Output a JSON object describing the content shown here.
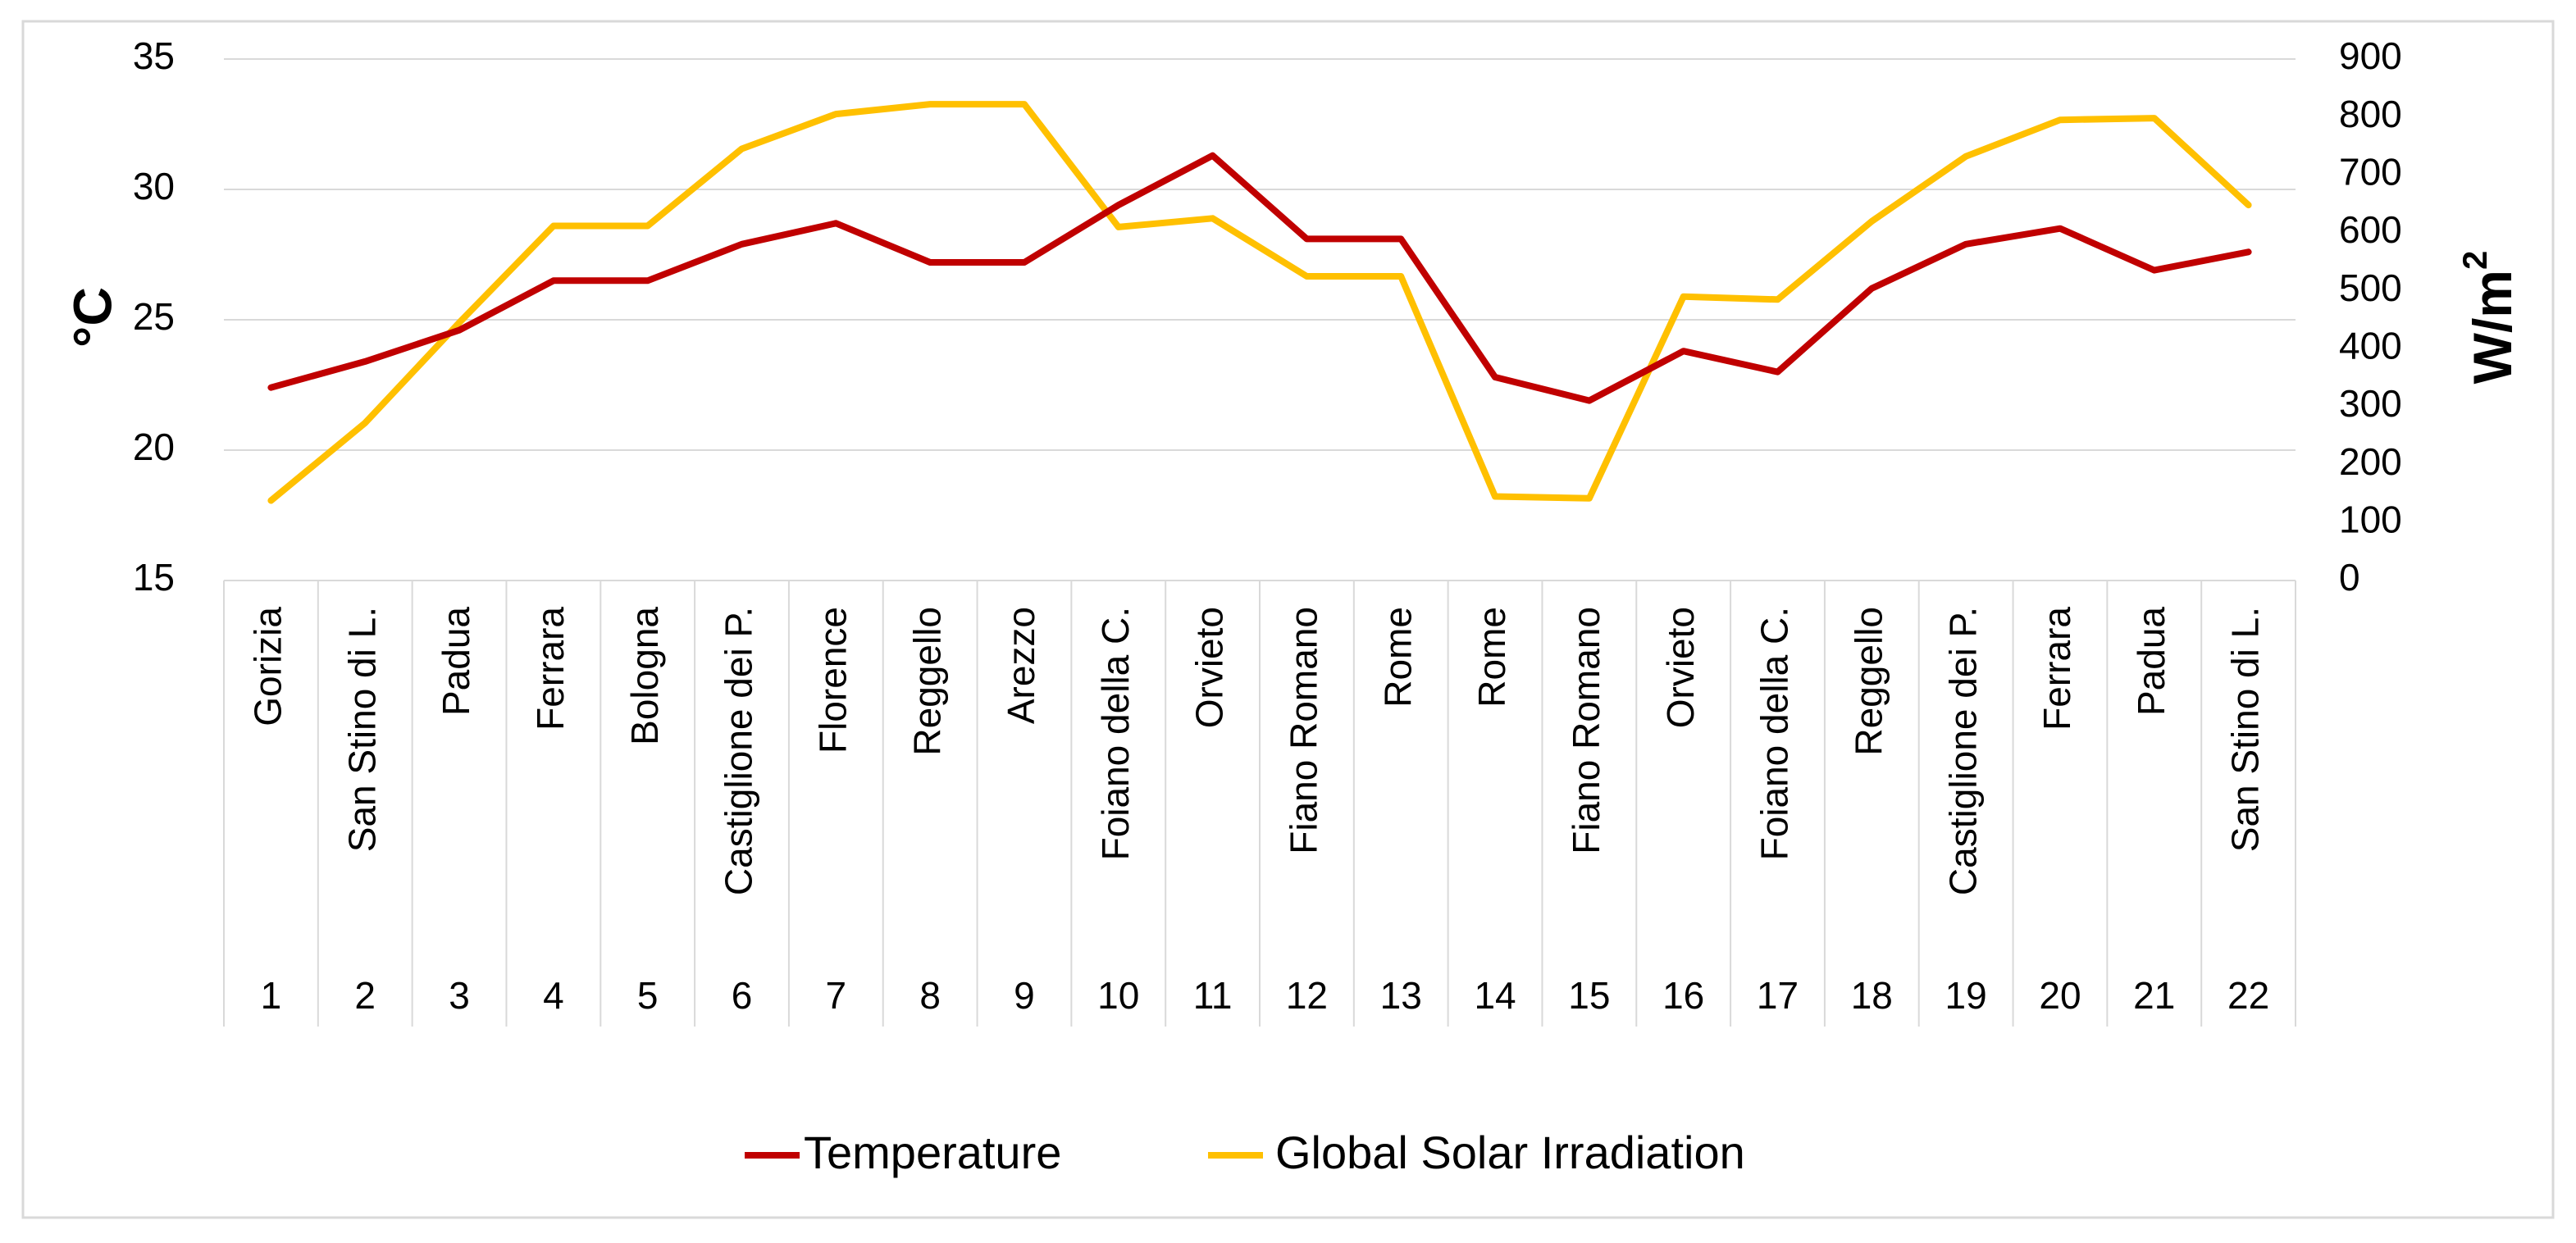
{
  "chart_data": {
    "type": "line",
    "title": "",
    "x_index": [
      "1",
      "2",
      "3",
      "4",
      "5",
      "6",
      "7",
      "8",
      "9",
      "10",
      "11",
      "12",
      "13",
      "14",
      "15",
      "16",
      "17",
      "18",
      "19",
      "20",
      "21",
      "22"
    ],
    "categories": [
      "Gorizia",
      "San Stino di L.",
      "Padua",
      "Ferrara",
      "Bologna",
      "Castiglione dei P.",
      "Florence",
      "Reggello",
      "Arezzo",
      "Foiano della C.",
      "Orvieto",
      "Fiano Romano",
      "Rome",
      "Rome",
      "Fiano Romano",
      "Orvieto",
      "Foiano della C.",
      "Reggello",
      "Castiglione dei P.",
      "Ferrara",
      "Padua",
      "San Stino di L."
    ],
    "y_left": {
      "label": "°C",
      "lim": [
        15,
        35
      ],
      "ticks": [
        "15",
        "20",
        "25",
        "30",
        "35"
      ]
    },
    "y_right": {
      "label_main": "W/m",
      "label_sup": "2",
      "lim": [
        0,
        900
      ],
      "ticks": [
        "0",
        "100",
        "200",
        "300",
        "400",
        "500",
        "600",
        "700",
        "800",
        "900"
      ]
    },
    "series": [
      {
        "name": "Temperature",
        "axis": "left",
        "color": "#C00000",
        "values": [
          22.4,
          23.4,
          24.6,
          26.5,
          26.5,
          27.9,
          28.7,
          27.2,
          27.2,
          29.4,
          31.3,
          28.1,
          28.1,
          22.8,
          21.9,
          23.8,
          23.0,
          26.2,
          27.9,
          28.5,
          26.9,
          27.6
        ]
      },
      {
        "name": "Global Solar Irradiation",
        "axis": "right",
        "color": "#FFC000",
        "values": [
          138,
          272,
          445,
          612,
          612,
          745,
          805,
          822,
          822,
          610,
          625,
          525,
          525,
          145,
          142,
          490,
          485,
          620,
          732,
          795,
          798,
          648
        ]
      }
    ],
    "legend_position": "bottom-center",
    "grid": true
  }
}
